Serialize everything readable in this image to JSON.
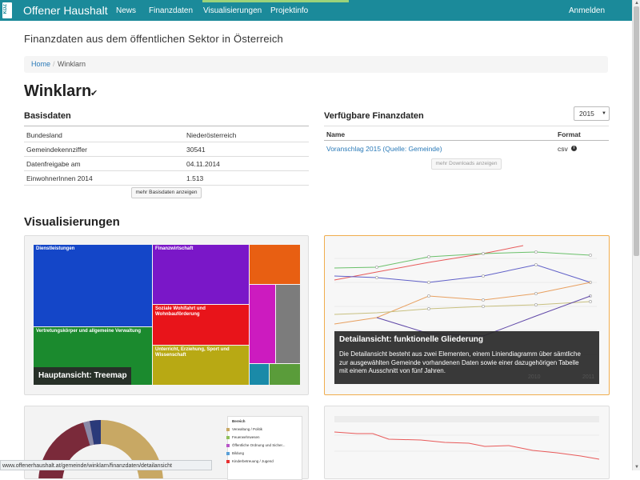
{
  "nav": {
    "logo_text": "KDZ",
    "brand": "Offener Haushalt",
    "items": [
      "News",
      "Finanzdaten",
      "Visualisierungen",
      "Projektinfo"
    ],
    "login": "Anmelden"
  },
  "subtitle": "Finanzdaten aus dem öffentlichen Sektor in Österreich",
  "breadcrumb": {
    "home": "Home",
    "separator": "/",
    "current": "Winklarn"
  },
  "title": "Winklarn",
  "basisdaten": {
    "heading": "Basisdaten",
    "rows": [
      {
        "label": "Bundesland",
        "value": "Niederösterreich"
      },
      {
        "label": "Gemeindekennziffer",
        "value": "30541"
      },
      {
        "label": "Datenfreigabe am",
        "value": "04.11.2014"
      },
      {
        "label": "EinwohnerInnen 2014",
        "value": "1.513"
      }
    ],
    "more_button": "mehr Basisdaten anzeigen"
  },
  "finanzdaten": {
    "heading": "Verfügbare Finanzdaten",
    "year": "2015",
    "col_name": "Name",
    "col_format": "Format",
    "row_name": "Voranschlag 2015 (Quelle: Gemeinde)",
    "row_format": "csv",
    "more_button": "mehr Downloads anzeigen"
  },
  "visualisierungen": {
    "heading": "Visualisierungen",
    "treemap": {
      "caption": "Hauptansicht: Treemap",
      "tiles": [
        {
          "label": "Dienstleistungen",
          "color": "#1446c8"
        },
        {
          "label": "Finanzwirtschaft",
          "color": "#7a17c8"
        },
        {
          "label": "Vertretungskörper und allgemeine Verwaltung",
          "color": "#1b8a2e"
        },
        {
          "label": "Soziale Wohlfahrt und Wohnbauförderung",
          "color": "#e8141a"
        },
        {
          "label": "Unterricht, Erziehung, Sport und Wissenschaft",
          "color": "#b8a914"
        },
        {
          "label": "",
          "color": "#e85f12"
        },
        {
          "label": "",
          "color": "#cc1bbf"
        },
        {
          "label": "",
          "color": "#7c7c7c"
        }
      ]
    },
    "detail": {
      "caption_title": "Detailansicht: funktionelle Gliederung",
      "caption_text": "Die Detailansicht besteht aus zwei Elementen, einem Liniendiagramm über sämtliche zur ausgewählten Gemeinde vorhandenen Daten sowie einer dazugehörigen Tabelle mit einem Ausschnitt von fünf Jahren.",
      "x_visible": [
        "2010",
        "2011"
      ]
    },
    "donut_legend": {
      "header": "Bereich",
      "items": [
        {
          "label": "Verwaltung / Politik",
          "color": "#c8a864"
        },
        {
          "label": "Feuerwehrwesen",
          "color": "#8fbf5a"
        },
        {
          "label": "Öffentliche Ordnung und Sicher...",
          "color": "#b855c8"
        },
        {
          "label": "Bildung",
          "color": "#5aa0d8"
        },
        {
          "label": "Kinderbetreuung / Jugend",
          "color": "#e83030"
        }
      ]
    }
  },
  "status_url": "www.offenerhaushalt.at/gemeinde/winklarn/finanzdaten/detailansicht",
  "colors": {
    "navbar": "#1b8a9a",
    "link": "#2a7ab8",
    "active_border": "#f0ad4e"
  }
}
